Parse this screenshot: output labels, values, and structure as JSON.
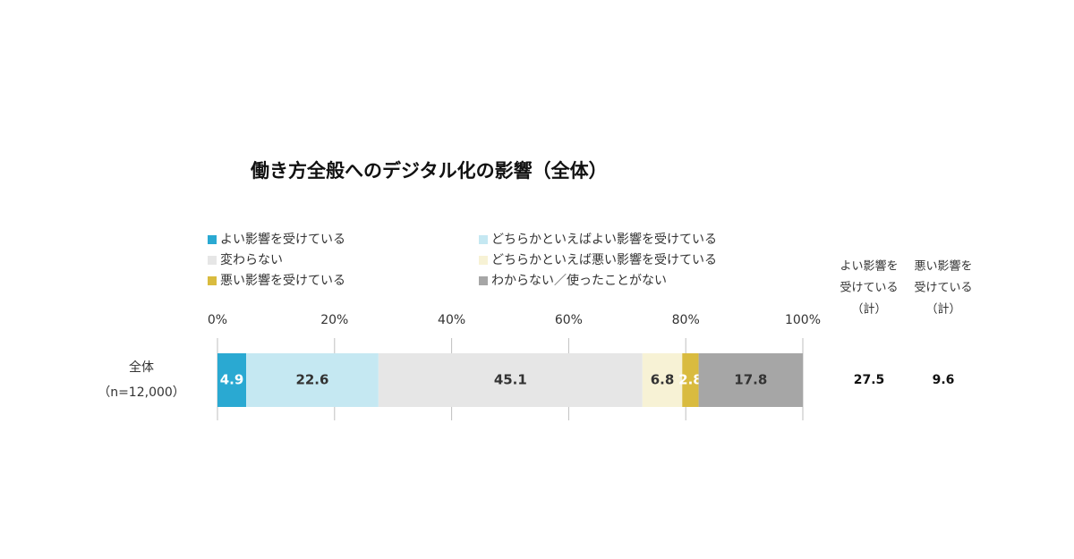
{
  "chart_data": {
    "type": "stacked_bar_horizontal",
    "title": "働き方全般へのデジタル化の影響（全体）",
    "categories": [
      "全体"
    ],
    "category_notes": [
      "（n=12,000）"
    ],
    "series": [
      {
        "name": "よい影響を受けている",
        "color": "#2aa9d2",
        "label_color": "#ffffff",
        "values": [
          4.9
        ]
      },
      {
        "name": "どちらかといえばよい影響を受けている",
        "color": "#c5e8f2",
        "label_color": "#333333",
        "values": [
          22.6
        ]
      },
      {
        "name": "変わらない",
        "color": "#e6e6e6",
        "label_color": "#333333",
        "values": [
          45.1
        ]
      },
      {
        "name": "どちらかといえば悪い影響を受けている",
        "color": "#f7f2d5",
        "label_color": "#333333",
        "values": [
          6.8
        ]
      },
      {
        "name": "悪い影響を受けている",
        "color": "#d9bb3f",
        "label_color": "#ffffff",
        "values": [
          2.8
        ]
      },
      {
        "name": "わからない／使ったことがない",
        "color": "#a6a6a6",
        "label_color": "#333333",
        "values": [
          17.8
        ]
      }
    ],
    "xlim": [
      0,
      100
    ],
    "xticks": [
      {
        "value": 0,
        "label": "0%"
      },
      {
        "value": 20,
        "label": "20%"
      },
      {
        "value": 40,
        "label": "40%"
      },
      {
        "value": 60,
        "label": "60%"
      },
      {
        "value": 80,
        "label": "80%"
      },
      {
        "value": 100,
        "label": "100%"
      }
    ],
    "totals": [
      {
        "header": [
          "よい影響を",
          "受けている",
          "（計）"
        ],
        "values": [
          27.5
        ]
      },
      {
        "header": [
          "悪い影響を",
          "受けている",
          "（計）"
        ],
        "values": [
          9.6
        ]
      }
    ]
  }
}
